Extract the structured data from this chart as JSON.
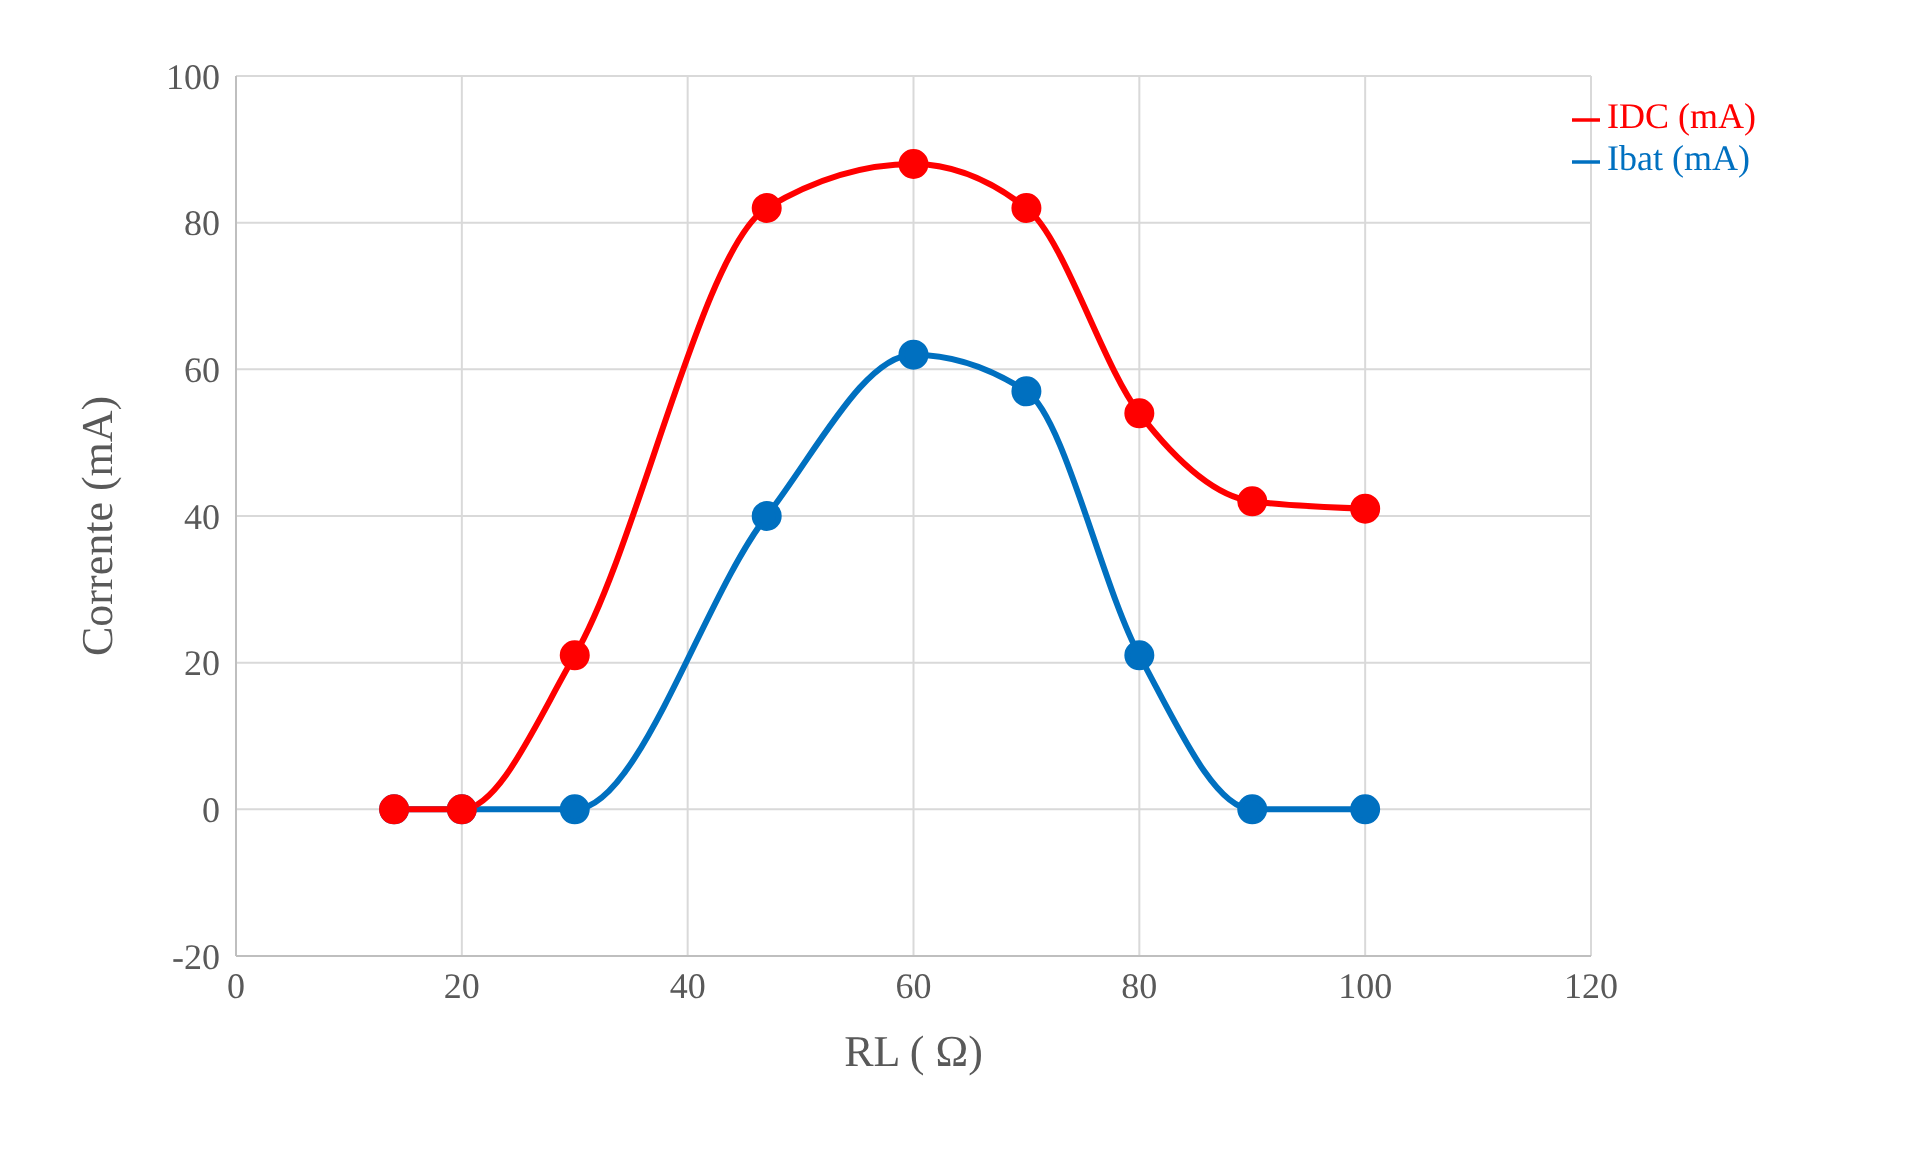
{
  "chart_data": {
    "type": "line",
    "xlabel": "RL ( Ω)",
    "ylabel": "Corrente (mA)",
    "x": [
      14,
      20,
      30,
      47,
      60,
      70,
      80,
      90,
      100
    ],
    "series": [
      {
        "name": "Ibat (mA)",
        "color": "#0070c0",
        "values": [
          0,
          0,
          0,
          40,
          62,
          57,
          21,
          0,
          0
        ]
      },
      {
        "name": "IDC (mA)",
        "color": "#ff0000",
        "values": [
          0,
          0,
          21,
          82,
          88,
          82,
          54,
          42,
          41
        ]
      }
    ],
    "xlim": [
      0,
      120
    ],
    "xticks": [
      0,
      20,
      40,
      60,
      80,
      100,
      120
    ],
    "ylim": [
      -20,
      100
    ],
    "yticks": [
      -20,
      0,
      20,
      40,
      60,
      80,
      100
    ],
    "grid": true,
    "legend": "top right",
    "marker": "circle"
  }
}
